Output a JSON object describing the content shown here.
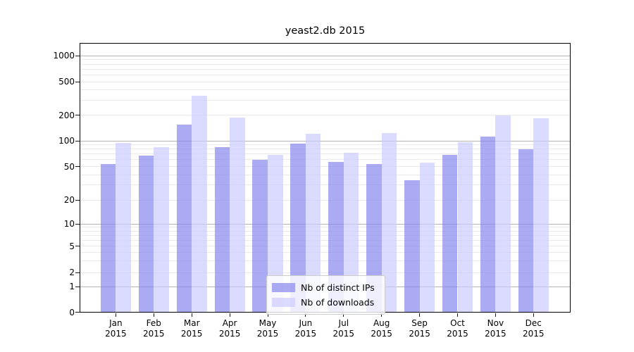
{
  "chart_data": {
    "type": "bar",
    "title": "yeast2.db 2015",
    "categories": [
      "Jan 2015",
      "Feb 2015",
      "Mar 2015",
      "Apr 2015",
      "May 2015",
      "Jun 2015",
      "Jul 2015",
      "Aug 2015",
      "Sep 2015",
      "Oct 2015",
      "Nov 2015",
      "Dec 2015"
    ],
    "x_tick_months": [
      "Jan",
      "Feb",
      "Mar",
      "Apr",
      "May",
      "Jun",
      "Jul",
      "Aug",
      "Sep",
      "Oct",
      "Nov",
      "Dec"
    ],
    "x_tick_year": "2015",
    "series": [
      {
        "name": "Nb of distinct IPs",
        "color": "rgba(136,136,238,0.7)",
        "values": [
          53,
          67,
          155,
          84,
          60,
          93,
          57,
          53,
          34,
          68,
          112,
          80
        ]
      },
      {
        "name": "Nb of downloads",
        "color": "rgba(204,204,255,0.7)",
        "values": [
          95,
          84,
          345,
          188,
          68,
          121,
          73,
          123,
          56,
          96,
          200,
          184
        ]
      }
    ],
    "yscale": "symlog",
    "ylim": [
      0,
      1300
    ],
    "y_ticks": [
      1000,
      500,
      200,
      100,
      50,
      20,
      10,
      5,
      2,
      1,
      0
    ],
    "y_major_grid": [
      1,
      10,
      100,
      1000
    ],
    "y_minor_grid": [
      3,
      4,
      6,
      7,
      8,
      9,
      30,
      40,
      60,
      70,
      80,
      90,
      300,
      400,
      600,
      700,
      800,
      900
    ],
    "grid": true,
    "legend_position": "lower center",
    "colors": {
      "major_grid": "#b3b3b3",
      "minor_grid": "#e9e9e9",
      "spine": "#000000",
      "background": "#ffffff"
    }
  }
}
